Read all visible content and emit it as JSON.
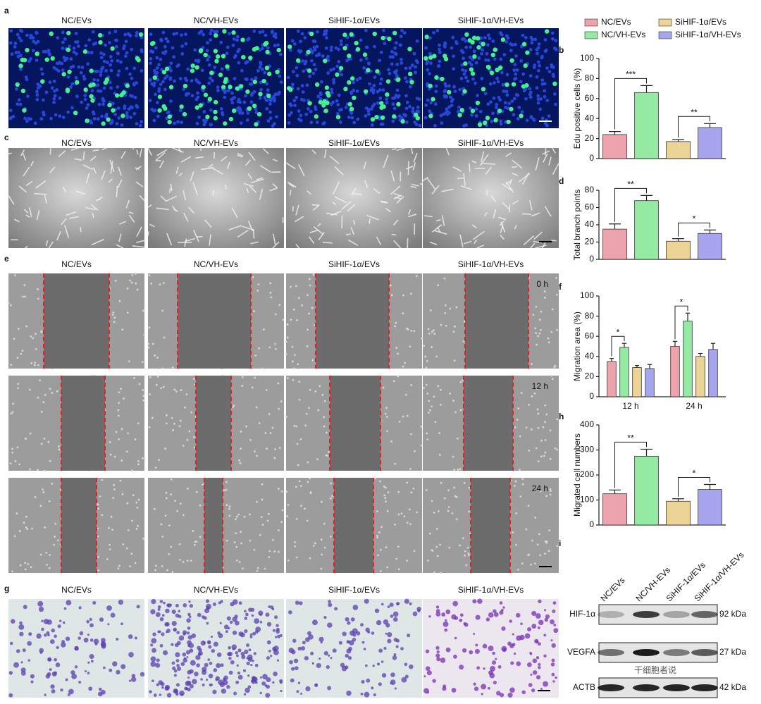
{
  "panel_labels": [
    "a",
    "b",
    "c",
    "d",
    "e",
    "f",
    "g",
    "h",
    "i"
  ],
  "conditions": [
    "NC/EVs",
    "NC/VH-EVs",
    "SiHIF-1α/EVs",
    "SiHIF-1α/VH-EVs"
  ],
  "time_points": [
    "0 h",
    "12 h",
    "24 h"
  ],
  "western_blot": {
    "proteins": [
      {
        "name": "HIF-1α",
        "size": "92 kDa"
      },
      {
        "name": "VEGFA",
        "size": "27 kDa"
      },
      {
        "name": "ACTB",
        "size": "42 kDa"
      }
    ]
  },
  "watermark": "干细胞者说",
  "chart_data": [
    {
      "type": "bar",
      "ylabel": "Edu positive cells (%)",
      "values": [
        24,
        66,
        17,
        31
      ],
      "errors": [
        3,
        7,
        2,
        4
      ],
      "colors": [
        "#eda3ab",
        "#95eaa3",
        "#ecd396",
        "#a7a5f0"
      ],
      "ylim": [
        0,
        100
      ],
      "yticks": [
        0,
        20,
        40,
        60,
        80,
        100
      ],
      "annotations": [
        {
          "text": "***",
          "from": 0,
          "to": 1
        },
        {
          "text": "**",
          "from": 2,
          "to": 3
        }
      ]
    },
    {
      "type": "bar",
      "ylabel": "Total branch points",
      "values": [
        35,
        68,
        21,
        30
      ],
      "errors": [
        6,
        6,
        3,
        4
      ],
      "colors": [
        "#eda3ab",
        "#95eaa3",
        "#ecd396",
        "#a7a5f0"
      ],
      "ylim": [
        0,
        80
      ],
      "yticks": [
        0,
        20,
        40,
        60,
        80
      ],
      "annotations": [
        {
          "text": "**",
          "from": 0,
          "to": 1
        },
        {
          "text": "*",
          "from": 2,
          "to": 3
        }
      ]
    },
    {
      "type": "grouped_bar",
      "ylabel": "Migration area (%)",
      "categories": [
        "12 h",
        "24 h"
      ],
      "series": [
        {
          "name": "NC/EVs",
          "color": "#eda3ab",
          "values": [
            35,
            50
          ],
          "errors": [
            3,
            5
          ]
        },
        {
          "name": "NC/VH-EVs",
          "color": "#95eaa3",
          "values": [
            49,
            75
          ],
          "errors": [
            4,
            8
          ]
        },
        {
          "name": "SiHIF-1α/EVs",
          "color": "#ecd396",
          "values": [
            29,
            40
          ],
          "errors": [
            2,
            3
          ]
        },
        {
          "name": "SiHIF-1α/VH-EVs",
          "color": "#a7a5f0",
          "values": [
            28,
            47
          ],
          "errors": [
            4,
            6
          ]
        }
      ],
      "ylim": [
        0,
        100
      ],
      "yticks": [
        0,
        20,
        40,
        60,
        80,
        100
      ],
      "annotations": [
        {
          "text": "*",
          "category": 0,
          "from": 0,
          "to": 1
        },
        {
          "text": "*",
          "category": 1,
          "from": 0,
          "to": 1
        }
      ]
    },
    {
      "type": "bar",
      "ylabel": "Migrated cell numbers",
      "values": [
        125,
        275,
        95,
        142
      ],
      "errors": [
        15,
        28,
        10,
        20
      ],
      "colors": [
        "#eda3ab",
        "#95eaa3",
        "#ecd396",
        "#a7a5f0"
      ],
      "ylim": [
        0,
        400
      ],
      "yticks": [
        0,
        100,
        200,
        300,
        400
      ],
      "annotations": [
        {
          "text": "**",
          "from": 0,
          "to": 1
        },
        {
          "text": "*",
          "from": 2,
          "to": 3
        }
      ]
    }
  ]
}
